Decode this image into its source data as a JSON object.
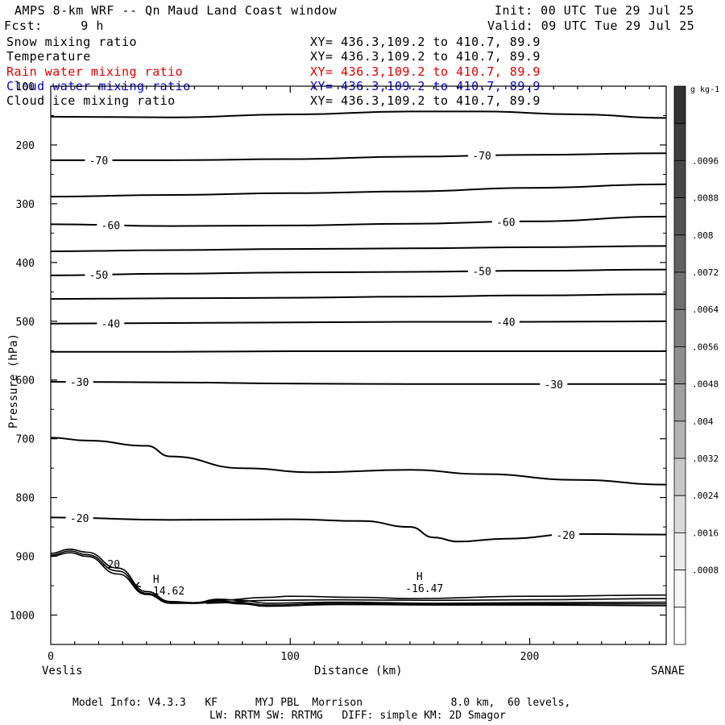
{
  "header": {
    "title": "AMPS 8-km WRF -- Qn Maud Land Coast window",
    "init": "Init: 00 UTC Tue 29 Jul 25",
    "fcst": "Fcst:     9 h",
    "valid": "Valid: 09 UTC Tue 29 Jul 25"
  },
  "fields": [
    {
      "name": "Snow mixing ratio",
      "xy": "XY= 436.3,109.2 to 410.7, 89.9",
      "color": "#000000"
    },
    {
      "name": "Temperature",
      "xy": "XY= 436.3,109.2 to 410.7, 89.9",
      "color": "#000000"
    },
    {
      "name": "Rain water mixing ratio",
      "xy": "XY= 436.3,109.2 to 410.7, 89.9",
      "color": "#e00000"
    },
    {
      "name": "Cloud water mixing ratio",
      "xy": "XY= 436.3,109.2 to 410.7, 89.9",
      "color": "#0000cc"
    },
    {
      "name": "Cloud ice mixing ratio",
      "xy": "XY= 436.3,109.2 to 410.7, 89.9",
      "color": "#000000"
    }
  ],
  "footer": {
    "line1": "Model Info: V4.3.3   KF      MYJ PBL  Morrison              8.0 km,  60 levels,",
    "line2": "LW: RRTM SW: RRTMG   DIFF: simple KM: 2D Smagor"
  },
  "chart_data": {
    "type": "line",
    "xlabel": "Distance (km)",
    "ylabel": "Pressure (hPa)",
    "xlim": [
      0,
      257
    ],
    "ylim": [
      1050,
      100
    ],
    "x_ticks": [
      0,
      100,
      200
    ],
    "y_ticks": [
      100,
      200,
      300,
      400,
      500,
      600,
      700,
      800,
      900,
      1000
    ],
    "x_end_labels": {
      "left": "Veslis",
      "right": "SANAE"
    },
    "isotherms": [
      {
        "label": "",
        "points": [
          [
            0,
            152
          ],
          [
            50,
            153
          ],
          [
            100,
            148
          ],
          [
            150,
            143
          ],
          [
            180,
            143
          ],
          [
            220,
            148
          ],
          [
            257,
            154
          ]
        ]
      },
      {
        "label": "-70",
        "points": [
          [
            0,
            226
          ],
          [
            50,
            226
          ],
          [
            100,
            224
          ],
          [
            150,
            220
          ],
          [
            200,
            217
          ],
          [
            257,
            214
          ]
        ]
      },
      {
        "label": "",
        "points": [
          [
            0,
            288
          ],
          [
            50,
            285
          ],
          [
            100,
            282
          ],
          [
            150,
            279
          ],
          [
            200,
            273
          ],
          [
            257,
            267
          ]
        ]
      },
      {
        "label": "-60",
        "points": [
          [
            0,
            335
          ],
          [
            50,
            338
          ],
          [
            100,
            337
          ],
          [
            150,
            334
          ],
          [
            200,
            330
          ],
          [
            257,
            322
          ]
        ]
      },
      {
        "label": "",
        "points": [
          [
            0,
            381
          ],
          [
            50,
            379
          ],
          [
            100,
            377
          ],
          [
            150,
            376
          ],
          [
            200,
            374
          ],
          [
            257,
            372
          ]
        ]
      },
      {
        "label": "-50",
        "points": [
          [
            0,
            422
          ],
          [
            50,
            419
          ],
          [
            100,
            417
          ],
          [
            150,
            416
          ],
          [
            200,
            414
          ],
          [
            257,
            412
          ]
        ]
      },
      {
        "label": "",
        "points": [
          [
            0,
            462
          ],
          [
            50,
            461
          ],
          [
            100,
            460
          ],
          [
            150,
            458
          ],
          [
            200,
            456
          ],
          [
            257,
            454
          ]
        ]
      },
      {
        "label": "-40",
        "points": [
          [
            0,
            504
          ],
          [
            50,
            503
          ],
          [
            100,
            502
          ],
          [
            150,
            501
          ],
          [
            200,
            501
          ],
          [
            257,
            500
          ]
        ]
      },
      {
        "label": "",
        "points": [
          [
            0,
            552
          ],
          [
            50,
            552
          ],
          [
            100,
            551
          ],
          [
            150,
            551
          ],
          [
            200,
            551
          ],
          [
            257,
            551
          ]
        ]
      },
      {
        "label": "-30",
        "points": [
          [
            0,
            603
          ],
          [
            50,
            604
          ],
          [
            100,
            606
          ],
          [
            150,
            607
          ],
          [
            200,
            607
          ],
          [
            257,
            607
          ]
        ]
      },
      {
        "label": "",
        "points": [
          [
            0,
            698
          ],
          [
            15,
            703
          ],
          [
            40,
            712
          ],
          [
            50,
            730
          ],
          [
            80,
            750
          ],
          [
            110,
            757
          ],
          [
            150,
            753
          ],
          [
            180,
            760
          ],
          [
            220,
            770
          ],
          [
            257,
            778
          ]
        ]
      },
      {
        "label": "-20",
        "points": [
          [
            0,
            834
          ],
          [
            50,
            838
          ],
          [
            100,
            837
          ],
          [
            130,
            840
          ],
          [
            150,
            850
          ],
          [
            160,
            868
          ],
          [
            170,
            875
          ],
          [
            190,
            870
          ],
          [
            220,
            862
          ],
          [
            257,
            863
          ]
        ]
      }
    ],
    "terrain_lines": [
      {
        "points": [
          [
            0,
            895
          ],
          [
            8,
            888
          ],
          [
            15,
            893
          ],
          [
            28,
            920
          ],
          [
            40,
            960
          ],
          [
            50,
            977
          ],
          [
            60,
            979
          ],
          [
            70,
            973
          ],
          [
            80,
            975
          ],
          [
            90,
            980
          ],
          [
            120,
            978
          ],
          [
            160,
            980
          ],
          [
            200,
            979
          ],
          [
            257,
            978
          ]
        ]
      },
      {
        "points": [
          [
            0,
            898
          ],
          [
            8,
            891
          ],
          [
            15,
            897
          ],
          [
            28,
            925
          ],
          [
            40,
            963
          ],
          [
            50,
            979
          ],
          [
            60,
            980
          ],
          [
            70,
            976
          ],
          [
            80,
            979
          ],
          [
            90,
            983
          ],
          [
            120,
            980
          ],
          [
            160,
            982
          ],
          [
            200,
            981
          ],
          [
            257,
            981
          ]
        ]
      },
      {
        "points": [
          [
            0,
            900
          ],
          [
            8,
            894
          ],
          [
            15,
            900
          ],
          [
            28,
            930
          ],
          [
            40,
            965
          ],
          [
            50,
            980
          ],
          [
            60,
            980
          ],
          [
            70,
            978
          ],
          [
            80,
            981
          ],
          [
            90,
            985
          ],
          [
            120,
            982
          ],
          [
            160,
            983
          ],
          [
            200,
            983
          ],
          [
            257,
            984
          ]
        ]
      },
      {
        "points": [
          [
            60,
            979
          ],
          [
            70,
            975
          ],
          [
            90,
            970
          ],
          [
            100,
            968
          ],
          [
            130,
            970
          ],
          [
            150,
            972
          ],
          [
            200,
            968
          ],
          [
            257,
            966
          ]
        ]
      },
      {
        "points": [
          [
            65,
            980
          ],
          [
            90,
            975
          ],
          [
            120,
            974
          ],
          [
            160,
            975
          ],
          [
            200,
            974
          ],
          [
            257,
            972
          ]
        ]
      }
    ],
    "annotations": [
      {
        "text": "-20",
        "x": 25,
        "y": 920
      },
      {
        "text": "H",
        "x": 44,
        "y": 945
      },
      {
        "text": "-14.62",
        "x": 48,
        "y": 965
      },
      {
        "text": "H",
        "x": 154,
        "y": 940
      },
      {
        "text": "-16.47",
        "x": 156,
        "y": 961
      }
    ],
    "colorbar": {
      "unit": "g kg-1",
      "ticks": [
        ".0096",
        ".0088",
        ".008",
        ".0072",
        ".0064",
        ".0056",
        ".0048",
        ".004",
        ".0032",
        ".0024",
        ".0016",
        ".0008"
      ],
      "colors": [
        "#333333",
        "#3d3d3d",
        "#474747",
        "#545454",
        "#616161",
        "#707070",
        "#7f7f7f",
        "#8f8f8f",
        "#a0a0a0",
        "#b3b3b3",
        "#c7c7c7",
        "#dadada",
        "#ebebeb",
        "#f7f7f7",
        "#ffffff"
      ]
    }
  }
}
